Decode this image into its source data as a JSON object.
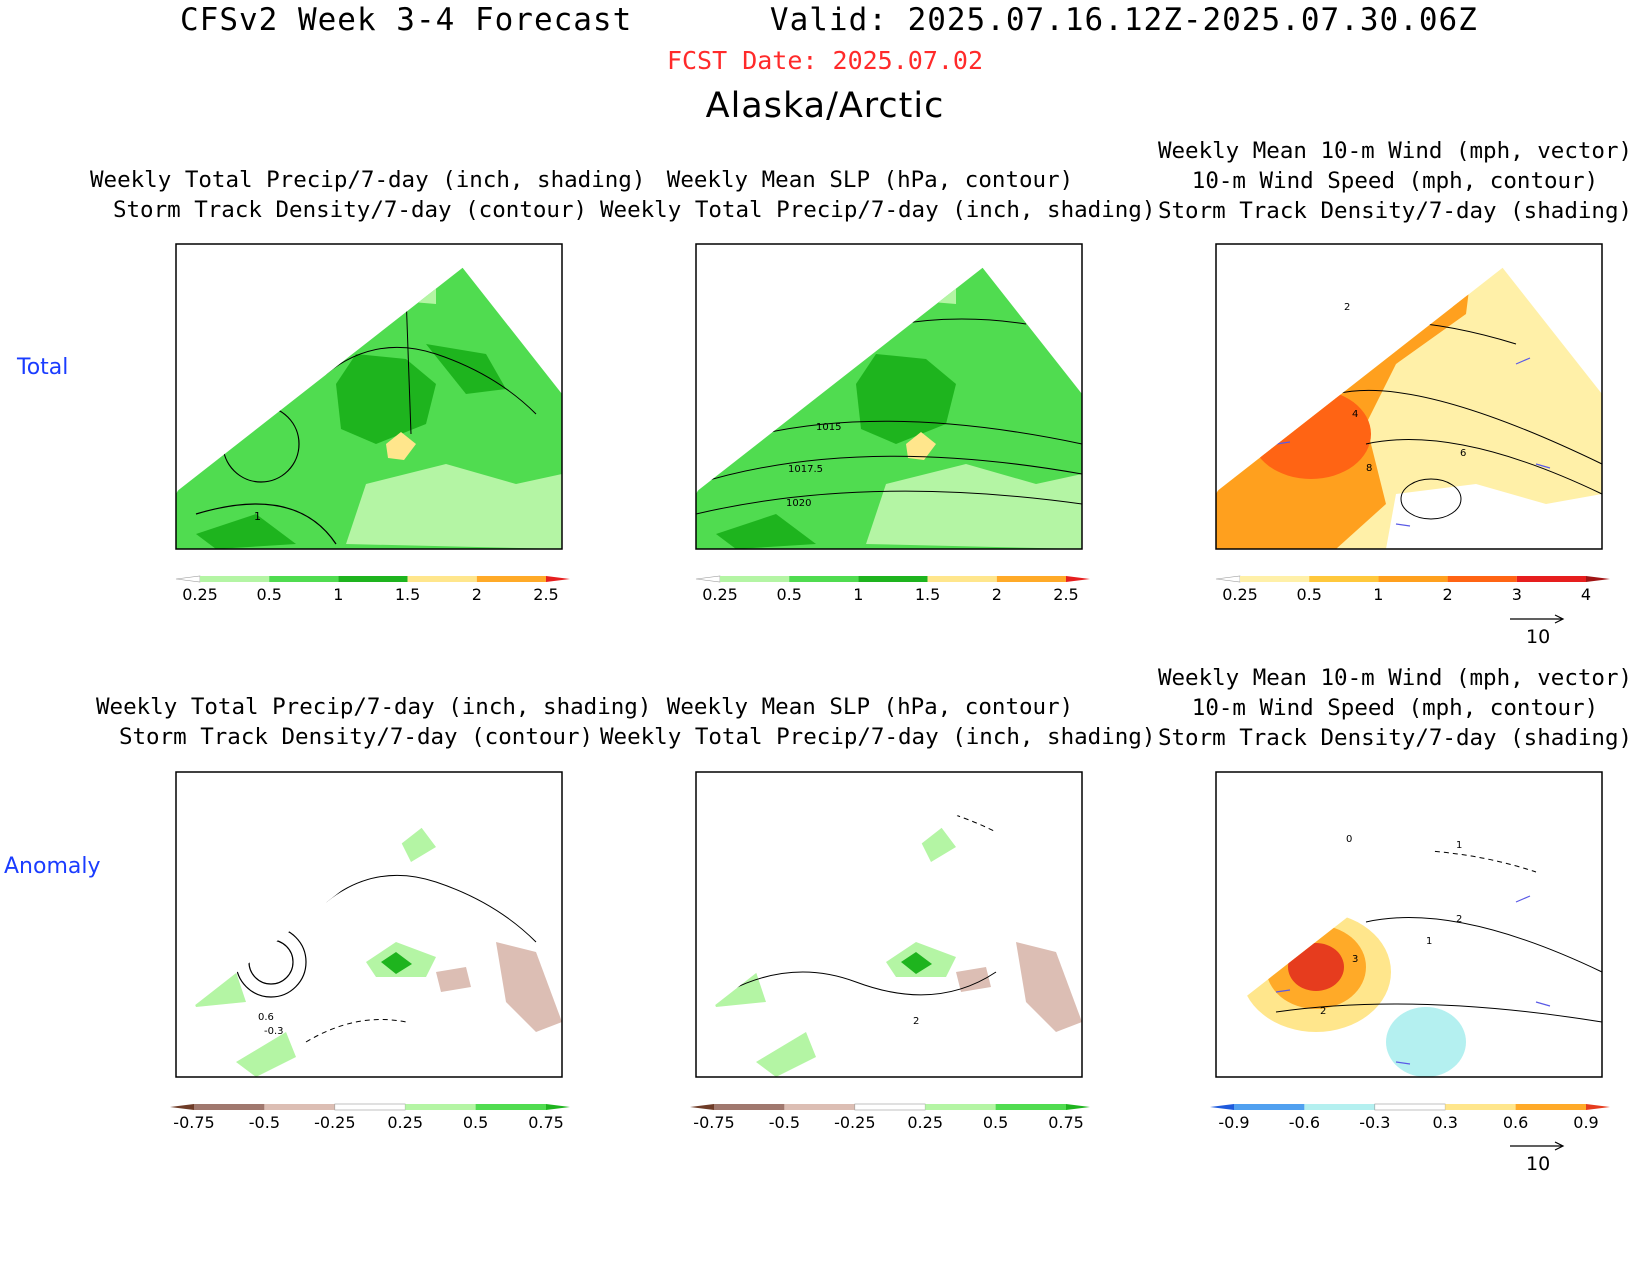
{
  "header": {
    "title": "CFSv2 Week 3-4 Forecast",
    "valid": "Valid: 2025.07.16.12Z-2025.07.30.06Z",
    "fcst_date": "FCST Date: 2025.07.02",
    "region": "Alaska/Arctic"
  },
  "rows": [
    "Total",
    "Anomaly"
  ],
  "panels": {
    "total_precip": [
      "Weekly Total Precip/7-day (inch, shading)",
      "Storm Track Density/7-day (contour)"
    ],
    "total_slp": [
      "Weekly Mean SLP (hPa, contour)",
      "Weekly Total Precip/7-day (inch, shading)"
    ],
    "total_wind": [
      "Weekly Mean 10-m Wind (mph, vector)",
      "10-m Wind Speed (mph, contour)",
      "Storm Track Density/7-day (shading)"
    ],
    "anom_precip": [
      "Weekly Total Precip/7-day (inch, shading)",
      "Storm Track Density/7-day (contour)"
    ],
    "anom_slp": [
      "Weekly Mean SLP (hPa, contour)",
      "Weekly Total Precip/7-day (inch, shading)"
    ],
    "anom_wind": [
      "Weekly Mean 10-m Wind (mph, vector)",
      "10-m Wind Speed (mph, contour)",
      "Storm Track Density/7-day (shading)"
    ]
  },
  "contour_labels": {
    "total_precip": [
      "1"
    ],
    "total_slp": [
      "1015",
      "1017.5",
      "1020"
    ],
    "total_wind": [
      "2",
      "4",
      "8",
      "6"
    ],
    "anom_precip": [
      "0.6",
      "-0.3"
    ],
    "anom_slp": [
      "2"
    ],
    "anom_wind": [
      "0",
      "1",
      "2",
      "1",
      "3",
      "2"
    ]
  },
  "colorbars": {
    "precip_total": {
      "labels": [
        "0.25",
        "0.5",
        "1",
        "1.5",
        "2",
        "2.5"
      ],
      "colors": [
        "#ffffff",
        "#b4f5a4",
        "#50dc50",
        "#1eb41e",
        "#ffe68c",
        "#ffaa28",
        "#e61e1e"
      ]
    },
    "storm_total": {
      "labels": [
        "0.25",
        "0.5",
        "1",
        "2",
        "3",
        "4"
      ],
      "colors": [
        "#ffffff",
        "#fff0a8",
        "#ffc83c",
        "#ffa01e",
        "#ff6414",
        "#e61e1e",
        "#a01414"
      ]
    },
    "precip_anom": {
      "labels": [
        "-0.75",
        "-0.5",
        "-0.25",
        "0.25",
        "0.5",
        "0.75"
      ],
      "colors": [
        "#6e3c28",
        "#a0786e",
        "#dcbeb4",
        "#ffffff",
        "#b4f5a4",
        "#50dc50",
        "#1eb41e"
      ]
    },
    "storm_anom": {
      "labels": [
        "-0.9",
        "-0.6",
        "-0.3",
        "0.3",
        "0.6",
        "0.9"
      ],
      "colors": [
        "#1e5adc",
        "#50a0f0",
        "#b4f0f0",
        "#ffffff",
        "#ffe68c",
        "#ffaa28",
        "#e63c1e"
      ]
    }
  },
  "vector_ref": {
    "value": "10"
  }
}
